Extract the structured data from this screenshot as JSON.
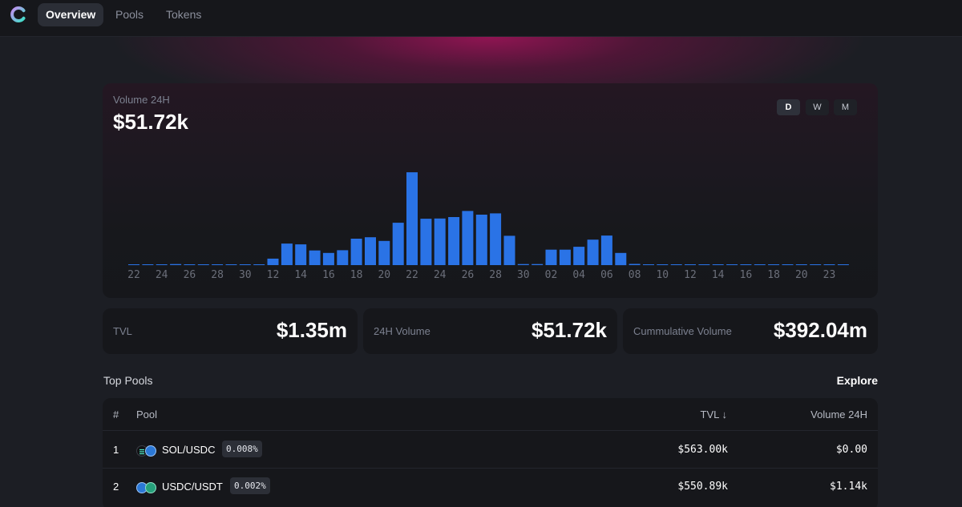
{
  "nav": {
    "items": [
      {
        "label": "Overview",
        "active": true
      },
      {
        "label": "Pools",
        "active": false
      },
      {
        "label": "Tokens",
        "active": false
      }
    ]
  },
  "volume_card": {
    "label": "Volume 24H",
    "value": "$51.72k",
    "ranges": [
      "D",
      "W",
      "M"
    ],
    "active_range": "D"
  },
  "chart_data": {
    "type": "bar",
    "title": "Volume 24H",
    "bar_color": "#2a73e6",
    "axis_color": "#6b6f7a",
    "tick_labels": [
      "22",
      "24",
      "26",
      "28",
      "30",
      "12",
      "14",
      "16",
      "18",
      "20",
      "22",
      "24",
      "26",
      "28",
      "30",
      "02",
      "04",
      "06",
      "08",
      "10",
      "12",
      "14",
      "16",
      "18",
      "20",
      "23"
    ],
    "values": [
      0.3,
      0.4,
      0.4,
      0.5,
      0.3,
      0.3,
      0.4,
      0.2,
      0.3,
      0.3,
      3.2,
      10.6,
      10.2,
      7.2,
      6.0,
      7.3,
      13.0,
      13.7,
      11.9,
      20.8,
      45.6,
      22.8,
      22.9,
      23.6,
      26.6,
      24.8,
      25.4,
      14.4,
      0.5,
      0.5,
      7.6,
      7.6,
      9.0,
      12.5,
      14.5,
      6.0,
      0.6,
      0.3,
      0.4,
      0.3,
      0.3,
      0.3,
      0.3,
      0.3,
      0.3,
      0.3,
      0.3,
      0.3,
      0.3,
      0.3,
      0.3,
      0.3
    ],
    "ylim": [
      0,
      48
    ]
  },
  "stats": [
    {
      "label": "TVL",
      "value": "$1.35m"
    },
    {
      "label": "24H Volume",
      "value": "$51.72k"
    },
    {
      "label": "Cummulative Volume",
      "value": "$392.04m"
    }
  ],
  "top_pools": {
    "title": "Top Pools",
    "explore_label": "Explore",
    "columns": {
      "index": "#",
      "pool": "Pool",
      "tvl": "TVL ↓",
      "volume": "Volume 24H"
    },
    "rows": [
      {
        "index": "1",
        "pair": "SOL/USDC",
        "fee": "0.008%",
        "tvl": "$563.00k",
        "volume": "$0.00"
      },
      {
        "index": "2",
        "pair": "USDC/USDT",
        "fee": "0.002%",
        "tvl": "$550.89k",
        "volume": "$1.14k"
      }
    ]
  }
}
